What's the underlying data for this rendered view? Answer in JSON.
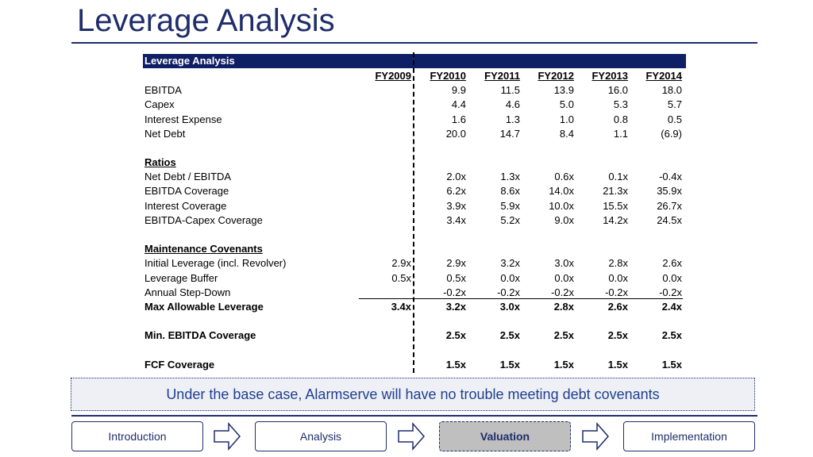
{
  "page": {
    "title": "Leverage Analysis"
  },
  "table": {
    "header_label": "Leverage Analysis",
    "years": [
      "FY2009",
      "FY2010",
      "FY2011",
      "FY2012",
      "FY2013",
      "FY2014"
    ],
    "financials": [
      {
        "label": "EBITDA",
        "values": [
          "",
          "9.9",
          "11.5",
          "13.9",
          "16.0",
          "18.0"
        ]
      },
      {
        "label": "Capex",
        "values": [
          "",
          "4.4",
          "4.6",
          "5.0",
          "5.3",
          "5.7"
        ]
      },
      {
        "label": "Interest Expense",
        "values": [
          "",
          "1.6",
          "1.3",
          "1.0",
          "0.8",
          "0.5"
        ]
      },
      {
        "label": "Net Debt",
        "values": [
          "",
          "20.0",
          "14.7",
          "8.4",
          "1.1",
          "(6.9)"
        ]
      }
    ],
    "ratios_heading": "Ratios",
    "ratios": [
      {
        "label": "Net Debt / EBITDA",
        "values": [
          "",
          "2.0x",
          "1.3x",
          "0.6x",
          "0.1x",
          "-0.4x"
        ]
      },
      {
        "label": "EBITDA Coverage",
        "values": [
          "",
          "6.2x",
          "8.6x",
          "14.0x",
          "21.3x",
          "35.9x"
        ]
      },
      {
        "label": "Interest Coverage",
        "values": [
          "",
          "3.9x",
          "5.9x",
          "10.0x",
          "15.5x",
          "26.7x"
        ]
      },
      {
        "label": "EBITDA-Capex Coverage",
        "values": [
          "",
          "3.4x",
          "5.2x",
          "9.0x",
          "14.2x",
          "24.5x"
        ]
      }
    ],
    "covenants_heading": "Maintenance Covenants",
    "covenants": [
      {
        "label": "Initial Leverage (incl. Revolver)",
        "values": [
          "2.9x",
          "2.9x",
          "3.2x",
          "3.0x",
          "2.8x",
          "2.6x"
        ]
      },
      {
        "label": "Leverage Buffer",
        "values": [
          "0.5x",
          "0.5x",
          "0.0x",
          "0.0x",
          "0.0x",
          "0.0x"
        ]
      },
      {
        "label": "Annual Step-Down",
        "values": [
          "",
          "-0.2x",
          "-0.2x",
          "-0.2x",
          "-0.2x",
          "-0.2x"
        ]
      }
    ],
    "max_leverage": {
      "label": "Max Allowable Leverage",
      "values": [
        "3.4x",
        "3.2x",
        "3.0x",
        "2.8x",
        "2.6x",
        "2.4x"
      ]
    },
    "min_ebitda": {
      "label": "Min. EBITDA Coverage",
      "values": [
        "",
        "2.5x",
        "2.5x",
        "2.5x",
        "2.5x",
        "2.5x"
      ]
    },
    "fcf": {
      "label": "FCF Coverage",
      "values": [
        "",
        "1.5x",
        "1.5x",
        "1.5x",
        "1.5x",
        "1.5x"
      ]
    }
  },
  "callout": "Under the base case, Alarmserve will have no trouble meeting debt covenants",
  "nav": {
    "items": [
      "Introduction",
      "Analysis",
      "Valuation",
      "Implementation"
    ],
    "active": "Valuation"
  },
  "colors": {
    "navy": "#1f2d6b",
    "header_bg": "#0f1f66",
    "callout_text": "#1f3f8f",
    "active_bg": "#bfbfbf"
  }
}
